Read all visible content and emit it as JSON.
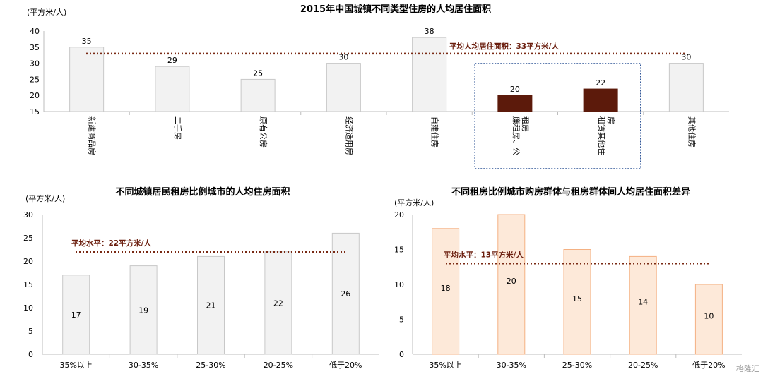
{
  "chart_data": [
    {
      "type": "bar",
      "title": "2015年中国城镇不同类型住房的人均居住面积",
      "ylabel": "(平方米/人)",
      "ylim": [
        15,
        40
      ],
      "yticks": [
        15,
        20,
        25,
        30,
        35,
        40
      ],
      "categories": [
        "新建商品房",
        "二手房",
        "原有公房",
        "经济适用房",
        "自建住房",
        "廉租房、公租房",
        "租赁其他住房",
        "其他住房"
      ],
      "values": [
        35,
        29,
        25,
        30,
        38,
        20,
        22,
        30
      ],
      "highlighted_categories": [
        "廉租房、公租房",
        "租赁其他住房"
      ],
      "average_label": "平均人均居住面积：33平方米/人",
      "average_value": 33,
      "colors": {
        "bar": "#f2f2f2",
        "bar_stroke": "#c8c8c8",
        "highlight": "#5c1a0b",
        "average": "#7a2a14",
        "box": "#2f5597"
      }
    },
    {
      "type": "bar",
      "title": "不同城镇居民租房比例城市的人均住房面积",
      "ylabel": "(平方米/人)",
      "ylim": [
        0,
        30
      ],
      "yticks": [
        0,
        5,
        10,
        15,
        20,
        25,
        30
      ],
      "categories": [
        "35%以上",
        "30-35%",
        "25-30%",
        "20-25%",
        "低于20%"
      ],
      "values": [
        17,
        19,
        21,
        22,
        26
      ],
      "average_label": "平均水平：22平方米/人",
      "average_value": 22,
      "colors": {
        "bar": "#f2f2f2",
        "bar_stroke": "#c8c8c8",
        "average": "#7a2a14"
      }
    },
    {
      "type": "bar",
      "title": "不同租房比例城市购房群体与租房群体间人均居住面积差异",
      "ylabel": "(平方米/人)",
      "ylim": [
        0,
        20
      ],
      "yticks": [
        0,
        5,
        10,
        15,
        20
      ],
      "categories": [
        "35%以上",
        "30-35%",
        "25-30%",
        "20-25%",
        "低于20%"
      ],
      "values": [
        18,
        20,
        15,
        14,
        10
      ],
      "average_label": "平均水平：13平方米/人",
      "average_value": 13,
      "colors": {
        "bar": "#fde9d9",
        "bar_stroke": "#f4b183",
        "average": "#7a2a14"
      }
    }
  ],
  "watermark": "格隆汇"
}
